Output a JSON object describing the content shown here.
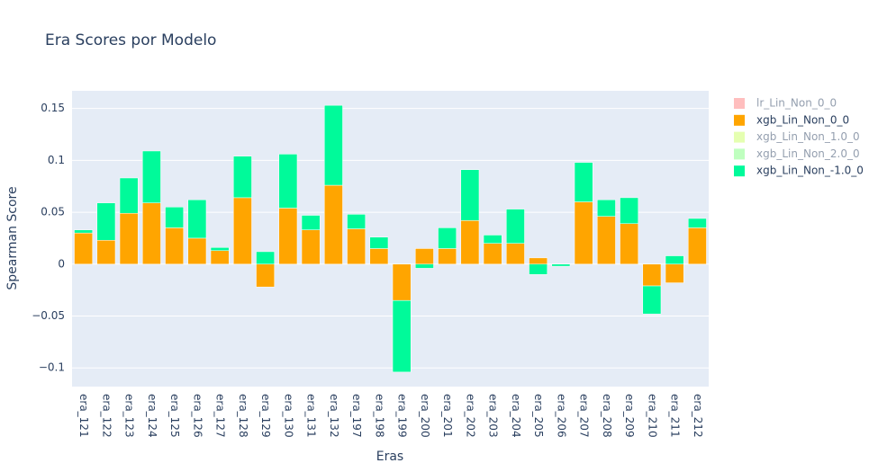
{
  "chart_data": {
    "type": "bar",
    "stacking": "relative",
    "title": "Era Scores por Modelo",
    "x_label": "Eras",
    "y_label": "Spearman Score",
    "categories": [
      "era_121",
      "era_122",
      "era_123",
      "era_124",
      "era_125",
      "era_126",
      "era_127",
      "era_128",
      "era_129",
      "era_130",
      "era_131",
      "era_132",
      "era_197",
      "era_198",
      "era_199",
      "era_200",
      "era_201",
      "era_202",
      "era_203",
      "era_204",
      "era_205",
      "era_206",
      "era_207",
      "era_208",
      "era_209",
      "era_210",
      "era_211",
      "era_212"
    ],
    "series": [
      {
        "name": "lr_Lin_Non_0_0",
        "color": "#ff7f7f",
        "hidden": true,
        "values": [
          null,
          null,
          null,
          null,
          null,
          null,
          null,
          null,
          null,
          null,
          null,
          null,
          null,
          null,
          null,
          null,
          null,
          null,
          null,
          null,
          null,
          null,
          null,
          null,
          null,
          null,
          null,
          null
        ]
      },
      {
        "name": "xgb_Lin_Non_0_0",
        "color": "#ffa500",
        "values": [
          0.03,
          0.023,
          0.049,
          0.059,
          0.035,
          0.025,
          0.013,
          0.064,
          -0.022,
          0.054,
          0.033,
          0.076,
          0.034,
          0.015,
          -0.035,
          0.015,
          0.015,
          0.042,
          0.02,
          0.02,
          0.006,
          0,
          0.06,
          0.046,
          0.039,
          -0.021,
          -0.018,
          0.035
        ]
      },
      {
        "name": "xgb_Lin_Non_1.0_0",
        "color": "#ccff66",
        "hidden": true,
        "values": [
          null,
          null,
          null,
          null,
          null,
          null,
          null,
          null,
          null,
          null,
          null,
          null,
          null,
          null,
          null,
          null,
          null,
          null,
          null,
          null,
          null,
          null,
          null,
          null,
          null,
          null,
          null,
          null
        ]
      },
      {
        "name": "xgb_Lin_Non_2.0_0",
        "color": "#80ff80",
        "hidden": true,
        "values": [
          null,
          null,
          null,
          null,
          null,
          null,
          null,
          null,
          null,
          null,
          null,
          null,
          null,
          null,
          null,
          null,
          null,
          null,
          null,
          null,
          null,
          null,
          null,
          null,
          null,
          null,
          null,
          null
        ]
      },
      {
        "name": "xgb_Lin_Non_-1.0_0",
        "color": "#00fa9a",
        "values": [
          0.003,
          0.036,
          0.034,
          0.05,
          0.02,
          0.037,
          0.003,
          0.04,
          0.012,
          0.052,
          0.014,
          0.077,
          0.014,
          0.011,
          -0.069,
          -0.004,
          0.02,
          0.049,
          0.008,
          0.033,
          -0.01,
          -0.002,
          0.038,
          0.016,
          0.025,
          -0.027,
          0.008,
          0.009
        ]
      }
    ],
    "ylim": [
      -0.118,
      0.167
    ],
    "yticks": [
      {
        "value": -0.1,
        "label": "−0.1"
      },
      {
        "value": -0.05,
        "label": "−0.05"
      },
      0,
      0.05,
      0.1,
      0.15
    ],
    "grid": true,
    "legend": "right"
  }
}
